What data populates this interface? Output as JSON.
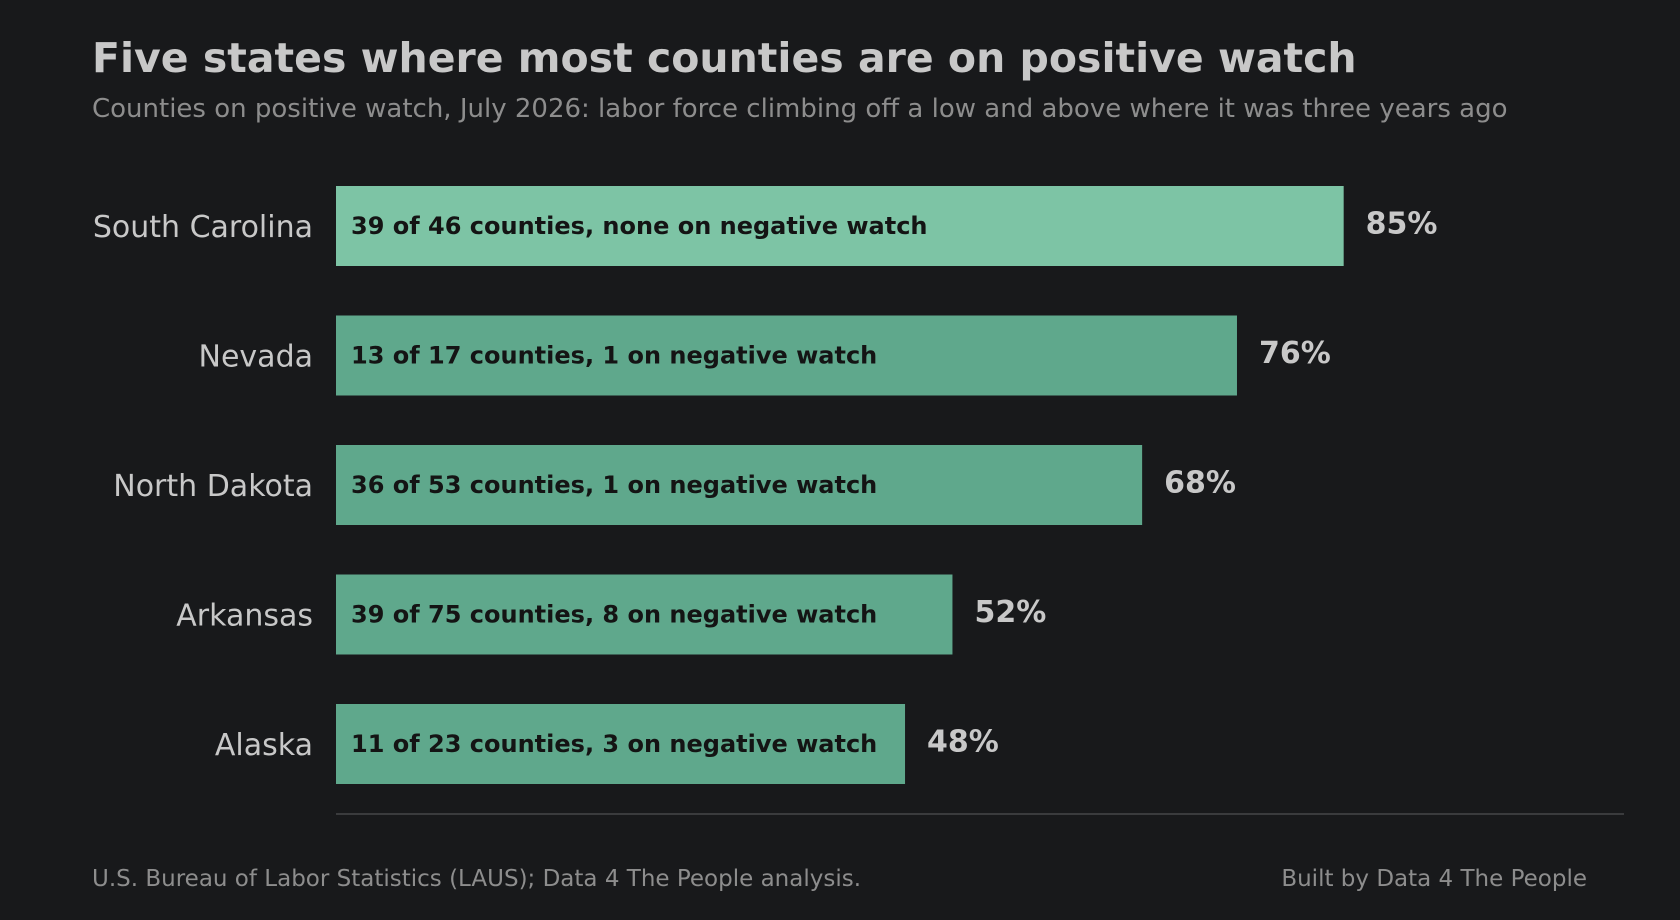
{
  "header": {
    "title": "Five states where most counties are on positive watch",
    "subtitle": "Counties on positive watch, July 2026: labor force climbing off a low and above where it was three years ago"
  },
  "footer": {
    "source": "U.S. Bureau of Labor Statistics (LAUS); Data 4 The People analysis.",
    "credit": "Built by Data 4 The People"
  },
  "colors": {
    "background": "#18191b",
    "bar_highlight": "#7dc4a5",
    "bar_default": "#5fa88c",
    "bar_text": "#141414",
    "value_text": "#c8c8c8",
    "category_text": "#c8c8c8",
    "baseline": "#3a3b3d"
  },
  "chart_data": {
    "type": "bar",
    "orientation": "horizontal",
    "title": "Five states where most counties are on positive watch",
    "subtitle": "Counties on positive watch, July 2026: labor force climbing off a low and above where it was three years ago",
    "categories": [
      "South Carolina",
      "Nevada",
      "North Dakota",
      "Arkansas",
      "Alaska"
    ],
    "values": [
      85,
      76,
      68,
      52,
      48
    ],
    "value_labels": [
      "85%",
      "76%",
      "68%",
      "52%",
      "48%"
    ],
    "bar_labels": [
      "39 of 46 counties, none on negative watch",
      "13 of 17 counties, 1 on negative watch",
      "36 of 53 counties, 1 on negative watch",
      "39 of 75 counties, 8 on negative watch",
      "11 of 23 counties, 3 on negative watch"
    ],
    "highlighted_category": "South Carolina",
    "xlim": [
      0,
      100
    ],
    "xlabel": "",
    "ylabel": "",
    "grid": false,
    "legend": "none"
  }
}
